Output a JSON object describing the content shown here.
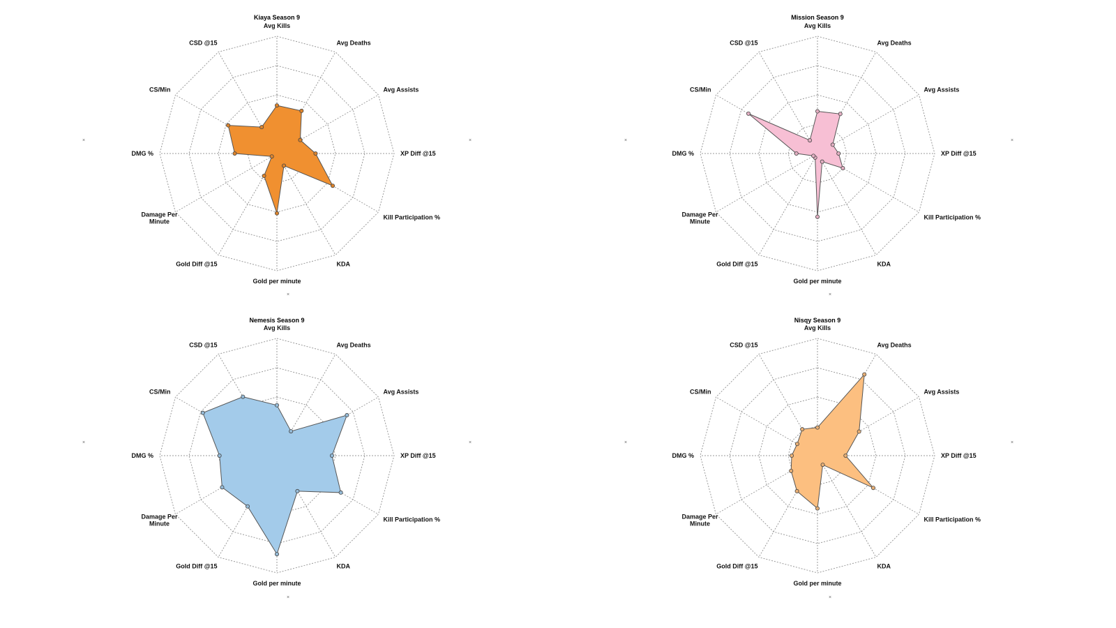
{
  "chart_data": [
    {
      "type": "radar",
      "title": "Kiaya Season 9",
      "axes": [
        "Avg Kills",
        "Avg Deaths",
        "Avg Assists",
        "XP Diff @15",
        "Kill Participation %",
        "KDA",
        "Gold per minute",
        "Gold Diff @15",
        "Damage Per Minute",
        "DMG %",
        "CS/Min",
        "CSD @15"
      ],
      "rlim": [
        0,
        1
      ],
      "rings": 4,
      "grid": true,
      "color": "#f09030",
      "values": [
        0.41,
        0.42,
        0.23,
        0.33,
        0.55,
        0.12,
        0.51,
        0.22,
        0.05,
        0.36,
        0.48,
        0.26
      ]
    },
    {
      "type": "radar",
      "title": "Mission Season 9",
      "axes": [
        "Avg Kills",
        "Avg Deaths",
        "Avg Assists",
        "XP Diff @15",
        "Kill Participation %",
        "KDA",
        "Gold per minute",
        "Gold Diff @15",
        "Damage Per Minute",
        "DMG %",
        "CS/Min",
        "CSD @15"
      ],
      "rlim": [
        0,
        1
      ],
      "rings": 4,
      "grid": true,
      "color": "#f7bfd4",
      "values": [
        0.36,
        0.39,
        0.15,
        0.18,
        0.25,
        0.08,
        0.54,
        0.04,
        0.04,
        0.18,
        0.68,
        0.13
      ]
    },
    {
      "type": "radar",
      "title": "Nemesis Season 9",
      "axes": [
        "Avg Kills",
        "Avg Deaths",
        "Avg Assists",
        "XP Diff @15",
        "Kill Participation %",
        "KDA",
        "Gold per minute",
        "Gold Diff @15",
        "Damage Per Minute",
        "DMG %",
        "CS/Min",
        "CSD @15"
      ],
      "rlim": [
        0,
        1
      ],
      "rings": 4,
      "grid": true,
      "color": "#a3cbea",
      "values": [
        0.43,
        0.24,
        0.69,
        0.47,
        0.63,
        0.35,
        0.84,
        0.5,
        0.54,
        0.49,
        0.73,
        0.58
      ]
    },
    {
      "type": "radar",
      "title": "Nisqy Season 9",
      "axes": [
        "Avg Kills",
        "Avg Deaths",
        "Avg Assists",
        "XP Diff @15",
        "Kill Participation %",
        "KDA",
        "Gold per minute",
        "Gold Diff @15",
        "Damage Per Minute",
        "DMG %",
        "CS/Min",
        "CSD @15"
      ],
      "rlim": [
        0,
        1
      ],
      "rings": 4,
      "grid": true,
      "color": "#fcbf80",
      "values": [
        0.24,
        0.8,
        0.41,
        0.24,
        0.55,
        0.09,
        0.45,
        0.35,
        0.26,
        0.22,
        0.2,
        0.26
      ]
    }
  ],
  "side_marker": "×"
}
